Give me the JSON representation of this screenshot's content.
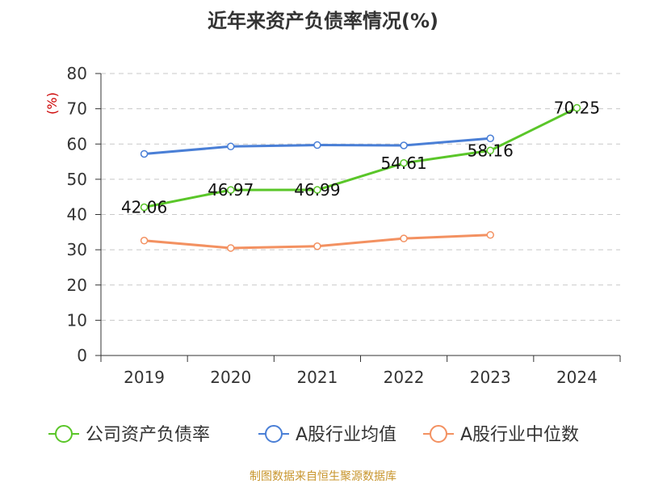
{
  "chart_data": {
    "type": "line",
    "title": "近年来资产负债率情况(%)",
    "ylabel": "(%)",
    "xlabel": "",
    "categories": [
      "2019",
      "2020",
      "2021",
      "2022",
      "2023",
      "2024"
    ],
    "ylim": [
      0,
      80
    ],
    "yticks": [
      0,
      10,
      20,
      30,
      40,
      50,
      60,
      70,
      80
    ],
    "grid": true,
    "legend_position": "bottom",
    "series": [
      {
        "name": "公司资产负债率",
        "color": "#5ac629",
        "values": [
          42.06,
          46.97,
          46.99,
          54.61,
          58.16,
          70.25
        ],
        "labels": [
          "42.06",
          "46.97",
          "46.99",
          "54.61",
          "58.16",
          "70.25"
        ]
      },
      {
        "name": "A股行业均值",
        "color": "#4a7fd6",
        "values": [
          57.2,
          59.3,
          59.7,
          59.6,
          61.6,
          null
        ]
      },
      {
        "name": "A股行业中位数",
        "color": "#f39161",
        "values": [
          32.6,
          30.5,
          31.0,
          33.2,
          34.2,
          null
        ]
      }
    ],
    "source": "制图数据来自恒生聚源数据库"
  }
}
